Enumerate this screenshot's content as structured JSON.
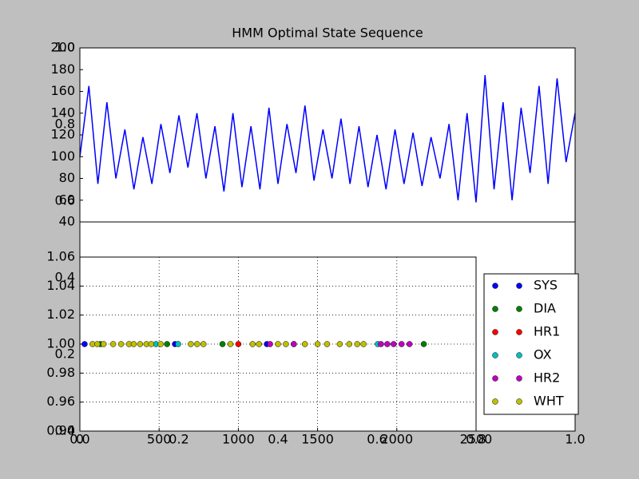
{
  "chart_data": [
    {
      "type": "axes",
      "xlim": [
        0,
        1
      ],
      "ylim": [
        0,
        1
      ],
      "xticks": [
        {
          "value": 0,
          "label": "0.0"
        },
        {
          "value": 0.2,
          "label": "0.2"
        },
        {
          "value": 0.4,
          "label": "0.4"
        },
        {
          "value": 0.6,
          "label": "0.6"
        },
        {
          "value": 0.8,
          "label": "0.8"
        },
        {
          "value": 1,
          "label": "1.0"
        }
      ],
      "yticks": [
        {
          "value": 0,
          "label": "0.0"
        },
        {
          "value": 0.2,
          "label": "0.2"
        },
        {
          "value": 0.4,
          "label": "0.4"
        },
        {
          "value": 0.6,
          "label": "0.6"
        },
        {
          "value": 0.8,
          "label": "0.8"
        },
        {
          "value": 1,
          "label": "1.0"
        }
      ]
    },
    {
      "type": "line",
      "title": "HMM Optimal State Sequence",
      "xlim": [
        0,
        2200
      ],
      "ylim": [
        40,
        200
      ],
      "yticks": [
        40,
        60,
        80,
        100,
        120,
        140,
        160,
        180,
        200
      ],
      "x": [
        0,
        40,
        80,
        120,
        160,
        200,
        240,
        280,
        320,
        360,
        400,
        440,
        480,
        520,
        560,
        600,
        640,
        680,
        720,
        760,
        800,
        840,
        880,
        920,
        960,
        1000,
        1040,
        1080,
        1120,
        1160,
        1200,
        1240,
        1280,
        1320,
        1360,
        1400,
        1440,
        1480,
        1520,
        1560,
        1600,
        1640,
        1680,
        1720,
        1760,
        1800,
        1840,
        1880,
        1920,
        1960,
        2000,
        2040,
        2080,
        2120,
        2160,
        2200
      ],
      "series": [
        {
          "color": "#0000ff",
          "values": [
            100,
            165,
            75,
            150,
            80,
            125,
            70,
            118,
            75,
            130,
            85,
            138,
            90,
            140,
            80,
            128,
            68,
            140,
            72,
            128,
            70,
            145,
            75,
            130,
            85,
            147,
            78,
            125,
            80,
            135,
            75,
            128,
            72,
            120,
            70,
            125,
            75,
            122,
            73,
            118,
            80,
            130,
            60,
            140,
            58,
            175,
            70,
            150,
            60,
            145,
            85,
            165,
            75,
            172,
            95,
            140
          ]
        }
      ]
    },
    {
      "type": "scatter",
      "grid": true,
      "legend": "right",
      "xlim": [
        0,
        2500
      ],
      "xticks": [
        0,
        500,
        1000,
        1500,
        2000,
        2500
      ],
      "ylim": [
        0.94,
        1.06
      ],
      "yticks": [
        {
          "value": 0.94,
          "label": "0.94"
        },
        {
          "value": 0.96,
          "label": "0.96"
        },
        {
          "value": 0.98,
          "label": "0.98"
        },
        {
          "value": 1,
          "label": "1.00"
        },
        {
          "value": 1.02,
          "label": "1.02"
        },
        {
          "value": 1.04,
          "label": "1.04"
        },
        {
          "value": 1.06,
          "label": "1.06"
        }
      ],
      "series": [
        {
          "name": "SYS",
          "color": "#0000ff",
          "x": [
            30,
            600,
            1180
          ],
          "values": [
            1,
            1,
            1
          ]
        },
        {
          "name": "DIA",
          "color": "#008000",
          "x": [
            130,
            550,
            900,
            2170
          ],
          "values": [
            1,
            1,
            1,
            1
          ]
        },
        {
          "name": "HR1",
          "color": "#ff0000",
          "x": [
            1000,
            1350
          ],
          "values": [
            1,
            1
          ]
        },
        {
          "name": "OX",
          "color": "#00bfbf",
          "x": [
            480,
            620,
            1880
          ],
          "values": [
            1,
            1,
            1
          ]
        },
        {
          "name": "HR2",
          "color": "#bf00bf",
          "x": [
            1200,
            1350,
            1900,
            1940,
            1980,
            2030,
            2080
          ],
          "values": [
            1,
            1,
            1,
            1,
            1,
            1,
            1
          ]
        },
        {
          "name": "WHT",
          "color": "#bfbf00",
          "x": [
            80,
            110,
            150,
            210,
            260,
            310,
            340,
            380,
            420,
            450,
            510,
            700,
            740,
            780,
            950,
            1090,
            1130,
            1250,
            1300,
            1420,
            1500,
            1560,
            1640,
            1700,
            1750,
            1790
          ],
          "values": [
            1,
            1,
            1,
            1,
            1,
            1,
            1,
            1,
            1,
            1,
            1,
            1,
            1,
            1,
            1,
            1,
            1,
            1,
            1,
            1,
            1,
            1,
            1,
            1,
            1,
            1
          ]
        }
      ]
    }
  ]
}
